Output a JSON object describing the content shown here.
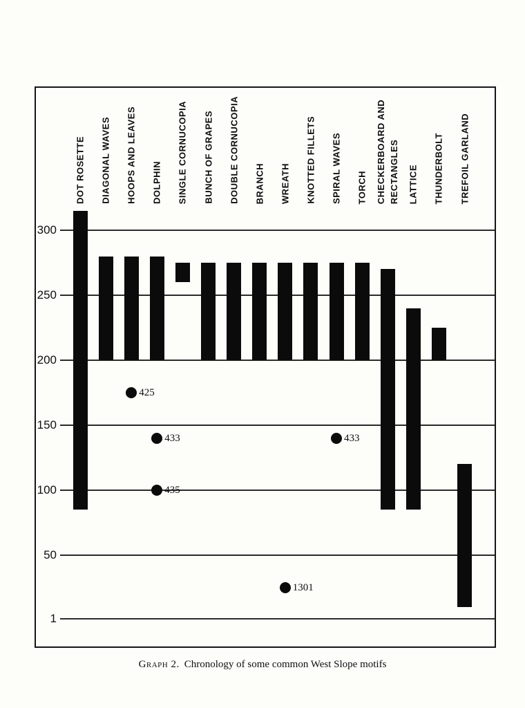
{
  "page": {
    "background": "#fdfdfa",
    "ink": "#0b0b0b"
  },
  "caption": {
    "label": "Graph 2.",
    "text": "Chronology of some common West Slope motifs"
  },
  "chart_data": {
    "type": "bar",
    "subtype": "vertical-range-bars",
    "title": "Graph 2. Chronology of some common West Slope motifs",
    "xlabel": "",
    "ylabel": "",
    "ylim": [
      1,
      315
    ],
    "y_ticks": [
      300,
      250,
      200,
      150,
      100,
      50,
      1
    ],
    "grid": true,
    "legend": false,
    "columns": [
      {
        "label": "DOT ROSETTE",
        "start": 85,
        "end": 315
      },
      {
        "label": "DIAGONAL WAVES",
        "start": 200,
        "end": 280
      },
      {
        "label": "HOOPS AND LEAVES",
        "start": 200,
        "end": 280
      },
      {
        "label": "DOLPHIN",
        "start": 200,
        "end": 280
      },
      {
        "label": "SINGLE CORNUCOPIA",
        "start": 260,
        "end": 275
      },
      {
        "label": "BUNCH OF GRAPES",
        "start": 200,
        "end": 275
      },
      {
        "label": "DOUBLE CORNUCOPIA",
        "start": 200,
        "end": 275
      },
      {
        "label": "BRANCH",
        "start": 200,
        "end": 275
      },
      {
        "label": "WREATH",
        "start": 200,
        "end": 275
      },
      {
        "label": "KNOTTED FILLETS",
        "start": 200,
        "end": 275
      },
      {
        "label": "SPIRAL WAVES",
        "start": 200,
        "end": 275
      },
      {
        "label": "TORCH",
        "start": 200,
        "end": 275
      },
      {
        "label": "CHECKERBOARD AND RECTANGLES",
        "label_lines": [
          "CHECKERBOARD AND",
          "RECTANGLES"
        ],
        "start": 85,
        "end": 270
      },
      {
        "label": "LATTICE",
        "start": 85,
        "end": 240
      },
      {
        "label": "THUNDERBOLT",
        "start": 200,
        "end": 225
      },
      {
        "label": "TREFOIL GARLAND",
        "start": 10,
        "end": 120
      }
    ],
    "points": [
      {
        "column": "HOOPS AND LEAVES",
        "value": 175,
        "label": "425"
      },
      {
        "column": "DOLPHIN",
        "value": 140,
        "label": "433"
      },
      {
        "column": "DOLPHIN",
        "value": 100,
        "label": "435"
      },
      {
        "column": "SPIRAL WAVES",
        "value": 140,
        "label": "433"
      },
      {
        "column": "WREATH",
        "value": 25,
        "label": "1301"
      }
    ]
  }
}
